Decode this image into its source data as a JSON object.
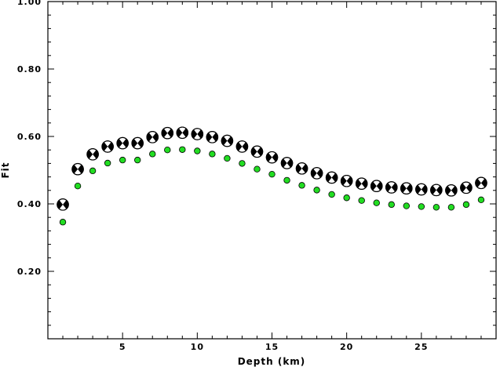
{
  "chart_data": {
    "type": "scatter",
    "title": "",
    "xlabel": "Depth (km)",
    "ylabel": "Fit",
    "xlim": [
      0,
      30
    ],
    "ylim": [
      0,
      1
    ],
    "xticks": [
      5,
      10,
      15,
      20,
      25
    ],
    "yticks": [
      0.2,
      0.4,
      0.6,
      0.8,
      1.0
    ],
    "ytick_labels": [
      "0.20",
      "0.40",
      "0.60",
      "0.80",
      "1.00"
    ],
    "grid": false,
    "series": [
      {
        "marker": "mechanism-beachball",
        "color": "#000000",
        "x": [
          1,
          2,
          3,
          4,
          5,
          6,
          7,
          8,
          9,
          10,
          11,
          12,
          13,
          14,
          15,
          16,
          17,
          18,
          19,
          20,
          21,
          22,
          23,
          24,
          25,
          26,
          27,
          28,
          29
        ],
        "y": [
          0.398,
          0.503,
          0.547,
          0.57,
          0.58,
          0.58,
          0.598,
          0.61,
          0.611,
          0.607,
          0.598,
          0.587,
          0.57,
          0.555,
          0.538,
          0.521,
          0.505,
          0.491,
          0.478,
          0.468,
          0.46,
          0.453,
          0.449,
          0.446,
          0.443,
          0.441,
          0.44,
          0.448,
          0.462
        ]
      },
      {
        "marker": "circle",
        "color": "#22dd22",
        "x": [
          1,
          2,
          3,
          4,
          5,
          6,
          7,
          8,
          9,
          10,
          11,
          12,
          13,
          14,
          15,
          16,
          17,
          18,
          19,
          20,
          21,
          22,
          23,
          24,
          25,
          26,
          27,
          28,
          29
        ],
        "y": [
          0.346,
          0.453,
          0.498,
          0.521,
          0.53,
          0.53,
          0.548,
          0.56,
          0.561,
          0.557,
          0.548,
          0.535,
          0.52,
          0.503,
          0.488,
          0.47,
          0.455,
          0.441,
          0.428,
          0.418,
          0.41,
          0.403,
          0.398,
          0.394,
          0.392,
          0.39,
          0.39,
          0.398,
          0.412
        ]
      }
    ]
  }
}
